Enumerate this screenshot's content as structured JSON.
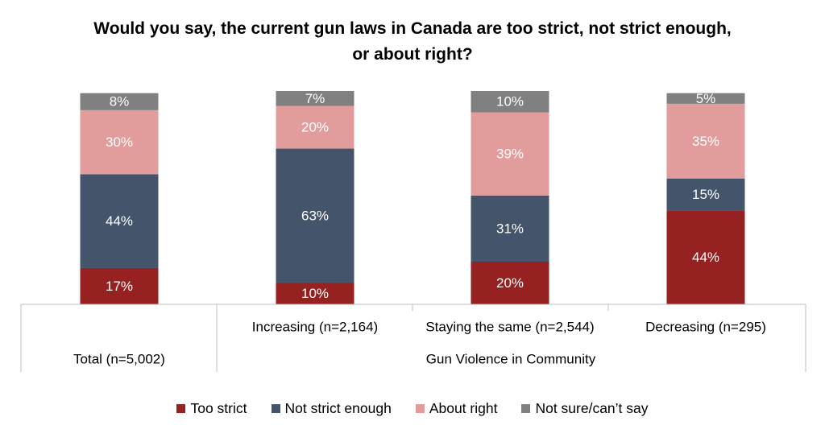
{
  "chart_data": {
    "type": "bar",
    "stacked": true,
    "title": "Would you say, the current gun laws in Canada are too strict, not strict enough, or about right?",
    "categories": [
      "Total (n=5,002)",
      "Increasing (n=2,164)",
      "Staying the same (n=2,544)",
      "Decreasing (n=295)"
    ],
    "group_label": "Gun Violence in Community",
    "ylim": [
      0,
      100
    ],
    "grid": false,
    "legend_position": "bottom",
    "series": [
      {
        "name": "Too strict",
        "color": "#962121",
        "label_color": "#ffffff",
        "values": [
          17,
          10,
          20,
          44
        ],
        "labels": [
          "17%",
          "10%",
          "20%",
          "44%"
        ]
      },
      {
        "name": "Not strict enough",
        "color": "#44546a",
        "label_color": "#ffffff",
        "values": [
          44,
          63,
          31,
          15
        ],
        "labels": [
          "44%",
          "63%",
          "31%",
          "15%"
        ]
      },
      {
        "name": "About right",
        "color": "#e39c9c",
        "label_color": "#ffffff",
        "values": [
          30,
          20,
          39,
          35
        ],
        "labels": [
          "30%",
          "20%",
          "39%",
          "35%"
        ]
      },
      {
        "name": "Not sure/can’t say",
        "color": "#808080",
        "label_color": "#ffffff",
        "values": [
          8,
          7,
          10,
          5
        ],
        "labels": [
          "8%",
          "7%",
          "10%",
          "5%"
        ]
      }
    ]
  }
}
